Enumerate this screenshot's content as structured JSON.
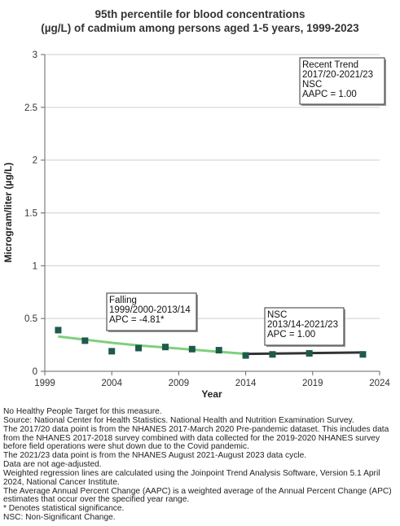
{
  "chart_data": {
    "type": "scatter",
    "title_lines": [
      "95th percentile for blood concentrations",
      "(µg/L) of cadmium among persons aged 1-5 years, 1999-2023"
    ],
    "xlabel": "Year",
    "ylabel": "Microgram/liter (µg/L)",
    "xlim": [
      1999,
      2024
    ],
    "ylim": [
      0,
      3
    ],
    "x_ticks": [
      1999,
      2004,
      2009,
      2014,
      2019,
      2024
    ],
    "y_ticks": [
      0,
      0.5,
      1,
      1.5,
      2,
      2.5,
      3
    ],
    "y_tick_labels": [
      "0",
      "0.5",
      "1",
      "1.5",
      "2",
      "2.5",
      "3"
    ],
    "grid": true,
    "marker_color": "#1f5a4c",
    "points": [
      {
        "x": 2000,
        "y": 0.39
      },
      {
        "x": 2002,
        "y": 0.29
      },
      {
        "x": 2004,
        "y": 0.19
      },
      {
        "x": 2006,
        "y": 0.22
      },
      {
        "x": 2008,
        "y": 0.23
      },
      {
        "x": 2010,
        "y": 0.21
      },
      {
        "x": 2012,
        "y": 0.2
      },
      {
        "x": 2014,
        "y": 0.15
      },
      {
        "x": 2016,
        "y": 0.16
      },
      {
        "x": 2018.75,
        "y": 0.17
      },
      {
        "x": 2022.75,
        "y": 0.16
      }
    ],
    "trend_lines": [
      {
        "color": "#7ed07e",
        "points": [
          {
            "x": 2000,
            "y": 0.33
          },
          {
            "x": 2002,
            "y": 0.3
          },
          {
            "x": 2004,
            "y": 0.27
          },
          {
            "x": 2006,
            "y": 0.245
          },
          {
            "x": 2008,
            "y": 0.225
          },
          {
            "x": 2010,
            "y": 0.205
          },
          {
            "x": 2012,
            "y": 0.185
          },
          {
            "x": 2014,
            "y": 0.165
          }
        ]
      },
      {
        "color": "#333333",
        "points": [
          {
            "x": 2014,
            "y": 0.165
          },
          {
            "x": 2016,
            "y": 0.167
          },
          {
            "x": 2018.75,
            "y": 0.172
          },
          {
            "x": 2022.75,
            "y": 0.178
          }
        ]
      }
    ],
    "annotations": [
      {
        "lines": [
          "Recent Trend",
          "2017/20-2021/23",
          "NSC",
          "AAPC =  1.00"
        ]
      },
      {
        "lines": [
          "Falling",
          "1999/2000-2013/14",
          "APC = -4.81*"
        ]
      },
      {
        "lines": [
          "NSC",
          "2013/14-2021/23",
          "APC =  1.00"
        ]
      }
    ]
  },
  "notes": [
    "No Healthy People Target for this measure.",
    "Source: National Center for Health Statistics. National Health and Nutrition Examination Survey.",
    "The 2017/20 data point is from the NHANES 2017-March 2020 Pre-pandemic dataset. This includes data from the NHANES 2017-2018 survey combined with data collected for the 2019-2020 NHANES survey before field operations were shut down due to the Covid pandemic.",
    "The 2021/23 data point is from the NHANES August 2021-August 2023 data cycle.",
    "Data are not age-adjusted.",
    "Weighted regression lines are calculated using the Joinpoint Trend Analysis Software, Version 5.1 April 2024, National Cancer Institute.",
    "The Average Annual Percent Change (AAPC) is a weighted average of the Annual Percent Change (APC) estimates that occur over the specified year range.",
    "* Denotes statistical significance.",
    "NSC: Non-Significant Change."
  ]
}
